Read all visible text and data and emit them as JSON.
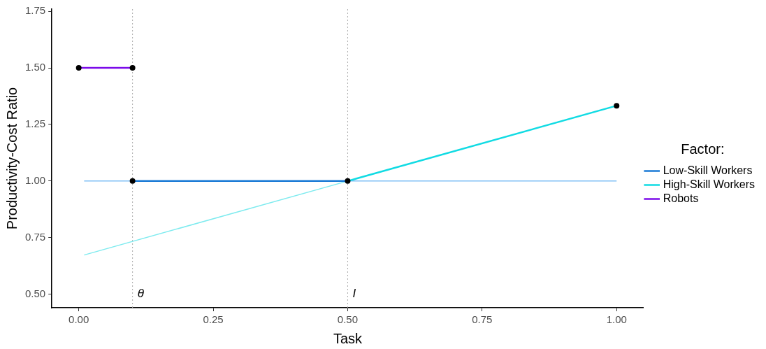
{
  "chart_data": {
    "type": "line",
    "xlabel": "Task",
    "ylabel": "Productivity-Cost Ratio",
    "legend_title": "Factor:",
    "legend": "right",
    "grid": false,
    "marker": "none",
    "xlim": [
      -0.05,
      1.05
    ],
    "xticks": [
      {
        "value": 0,
        "label": "0.00"
      },
      {
        "value": 0.25,
        "label": "0.25"
      },
      {
        "value": 0.5,
        "label": "0.50"
      },
      {
        "value": 0.75,
        "label": "0.75"
      },
      {
        "value": 1,
        "label": "1.00"
      }
    ],
    "ylim": [
      0.44,
      1.76
    ],
    "yticks": [
      {
        "value": 0.5,
        "label": "0.50"
      },
      {
        "value": 0.75,
        "label": "0.75"
      },
      {
        "value": 1,
        "label": "1.00"
      },
      {
        "value": 1.25,
        "label": "1.25"
      },
      {
        "value": 1.5,
        "label": "1.50"
      },
      {
        "value": 1.75,
        "label": "1.75"
      }
    ],
    "series": [
      {
        "color": "#7fbff5",
        "x": [
          0.01,
          1.0
        ],
        "values": [
          1.0,
          1.0
        ]
      },
      {
        "color": "#7eebef",
        "x": [
          0.01,
          0.5
        ],
        "values": [
          0.673,
          1.0
        ]
      },
      {
        "name": "Low-Skill Workers",
        "color": "#1a7ad6",
        "x": [
          0.1,
          0.5
        ],
        "values": [
          1.0,
          1.0
        ]
      },
      {
        "name": "High-Skill Workers",
        "color": "#11dbe3",
        "x": [
          0.5,
          1.0
        ],
        "values": [
          1.0,
          1.333
        ]
      },
      {
        "name": "Robots",
        "color": "#7b0bea",
        "x": [
          0.0,
          0.1
        ],
        "values": [
          1.5,
          1.5
        ]
      },
      {
        "type": "scatter",
        "marker": "circle",
        "color": "#000000",
        "x": [
          0.0,
          0.1,
          0.1,
          0.5,
          1.0
        ],
        "values": [
          1.5,
          1.5,
          1.0,
          1.0,
          1.333
        ]
      }
    ],
    "ref_lines": [
      {
        "axis": "x",
        "value": 0.1,
        "color": "#aaaaaa",
        "line_style": "dotted"
      },
      {
        "axis": "x",
        "value": 0.5,
        "color": "#aaaaaa",
        "line_style": "dotted"
      }
    ],
    "annotations": [
      {
        "text": "θ",
        "x": 0.1,
        "y": 0.5
      },
      {
        "text": "I",
        "x": 0.5,
        "y": 0.5
      }
    ]
  }
}
